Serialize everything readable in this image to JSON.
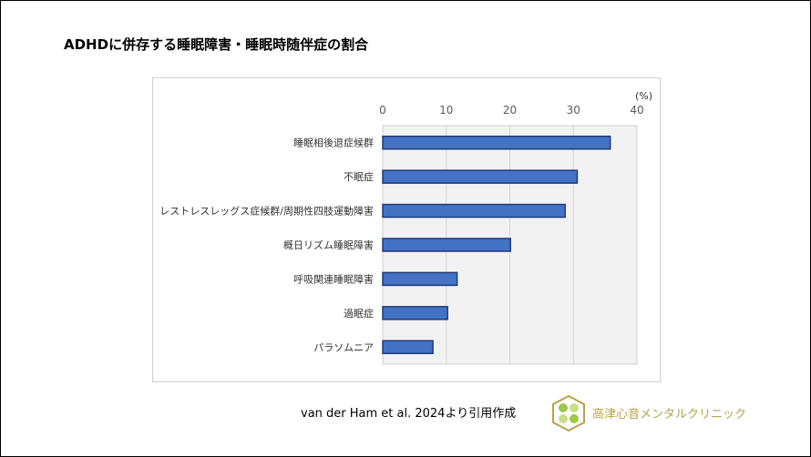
{
  "title": "ADHDに併存する睡眠障害・睡眠時随伴症の割合",
  "citation": "van der Ham et al. 2024より引用作成",
  "clinic_name": "高津心音メンタルクリニック",
  "colors": {
    "bar": "#4472c4",
    "bar_border": "#1f3a7a",
    "plot_bg": "#f2f2f2",
    "clinic": "#b8a24a"
  },
  "chart_data": {
    "type": "bar",
    "orientation": "horizontal",
    "categories": [
      "睡眠相後退症候群",
      "不眠症",
      "レストレスレッグス症候群/周期性四肢運動障害",
      "概日リズム睡眠障害",
      "呼吸関連睡眠障害",
      "過眠症",
      "パラソムニア"
    ],
    "values": [
      35.8,
      30.6,
      28.7,
      20.1,
      11.7,
      10.2,
      7.9
    ],
    "xlim": [
      0,
      40
    ],
    "xticks": [
      "0",
      "10",
      "20",
      "30",
      "40"
    ],
    "unit_label": "(%)",
    "axis_position": "top",
    "grid": true
  }
}
